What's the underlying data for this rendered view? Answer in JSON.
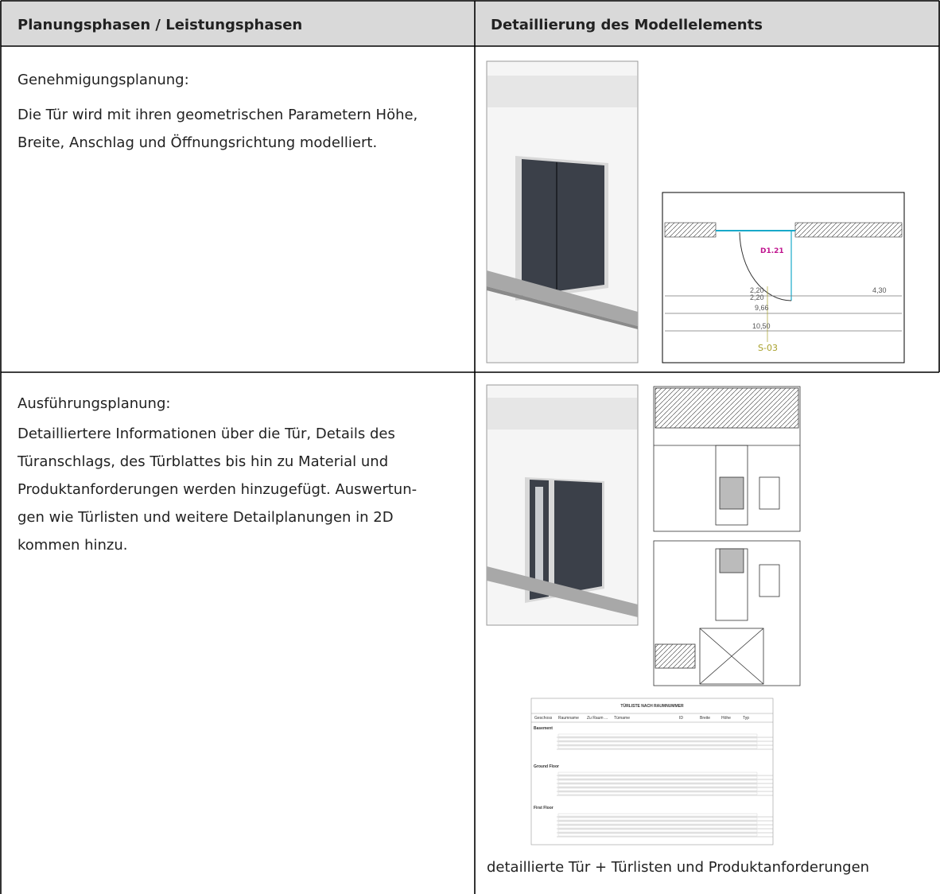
{
  "table": {
    "headers": [
      "Planungsphasen / Leistungsphasen",
      "Detaillierung des Modellelements"
    ],
    "rows": [
      {
        "phase": "Genehmigungsplanung:",
        "description": [
          "Die Tür wird mit ihren geometrischen Parametern Höhe,",
          "Breite, Anschlag und Öffnungsrichtung modelliert."
        ],
        "plan_labels": {
          "door_id": "D1.21",
          "dim_1": "2,20",
          "dim_2": "2,20",
          "dim_3": "4,30",
          "dim_4": "9,66",
          "dim_5": "10,50",
          "section": "S-03"
        }
      },
      {
        "phase": "Ausführungsplanung:",
        "description": [
          "Detailliertere Informationen über die Tür, Details des",
          "Türanschlags, des Türblattes bis hin zu Material und",
          "Produktanforderungen werden hinzugefügt. Auswertun-",
          "gen wie Türlisten und weitere Detailplanungen in 2D",
          "kommen hinzu."
        ],
        "door_list": {
          "title": "TÜRLISTE NACH RAUMNUMMER",
          "columns": [
            "Geschoss",
            "Raumname",
            "Zu Raum ...",
            "Türname",
            "ID",
            "Breite",
            "Höhe",
            "Typ"
          ],
          "groups": [
            "Basement",
            "Ground Floor",
            "First Floor"
          ]
        },
        "caption": "detaillierte Tür + Türlisten und Produktanforderungen"
      }
    ]
  }
}
